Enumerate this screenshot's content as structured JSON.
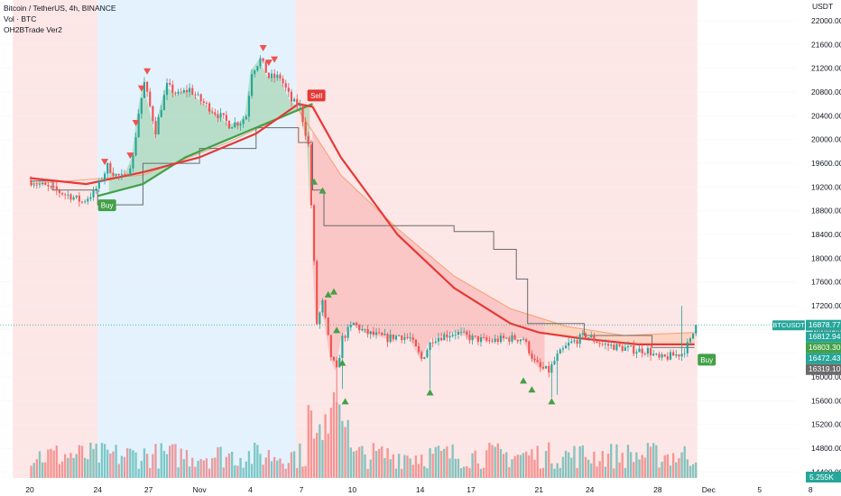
{
  "legend": {
    "symbol": "Bitcoin / TetherUS, 4h, BINANCE",
    "volume": "Vol · BTC",
    "indicator": "OH2BTrade Ver2"
  },
  "price_axis": {
    "currency": "USDT"
  },
  "colors": {
    "bull": "#26a69a",
    "bear": "#ef5350",
    "zone_red": "#fde6e6",
    "zone_blue": "#e3f2fd",
    "ema_red": "#e53935",
    "ema_green": "#43a047",
    "stop_line": "#6b6b6b"
  },
  "signals": {
    "buy_label": "Buy",
    "sell_label": "Sell"
  },
  "chart_data": {
    "type": "candlestick",
    "interval": "4h",
    "ylim": [
      14300,
      22350
    ],
    "y_ticks": [
      14400,
      14800,
      15200,
      15600,
      16000,
      16400,
      16800,
      17200,
      17600,
      18000,
      18400,
      18800,
      19200,
      19600,
      20000,
      20400,
      20800,
      21200,
      21600,
      22000
    ],
    "x_ticks": [
      "20",
      "24",
      "27",
      "Nov",
      "4",
      "7",
      "10",
      "14",
      "17",
      "21",
      "24",
      "28",
      "Dec",
      "5",
      "8"
    ],
    "x_tick_bars": [
      0,
      24,
      42,
      60,
      78,
      96,
      114,
      138,
      156,
      180,
      198,
      222,
      240,
      258,
      276
    ],
    "bar_count": 236,
    "last_bar": 235,
    "total_slots": 282,
    "background_zones": [
      {
        "from_bar": -6,
        "to_bar": 24,
        "color": "red"
      },
      {
        "from_bar": 24,
        "to_bar": 94,
        "color": "blue"
      },
      {
        "from_bar": 94,
        "to_bar": 236,
        "color": "red"
      }
    ],
    "price_path": [
      [
        0,
        19300
      ],
      [
        8,
        19150
      ],
      [
        14,
        19050
      ],
      [
        18,
        18950
      ],
      [
        22,
        19100
      ],
      [
        24,
        19250
      ],
      [
        27,
        19550
      ],
      [
        30,
        19400
      ],
      [
        33,
        19350
      ],
      [
        36,
        19700
      ],
      [
        38,
        20450
      ],
      [
        40,
        20950
      ],
      [
        42,
        20550
      ],
      [
        44,
        20150
      ],
      [
        46,
        20550
      ],
      [
        48,
        20900
      ],
      [
        52,
        20750
      ],
      [
        56,
        20850
      ],
      [
        60,
        20650
      ],
      [
        64,
        20500
      ],
      [
        68,
        20350
      ],
      [
        70,
        20250
      ],
      [
        74,
        20300
      ],
      [
        76,
        20400
      ],
      [
        78,
        21150
      ],
      [
        81,
        21350
      ],
      [
        84,
        21050
      ],
      [
        88,
        21050
      ],
      [
        92,
        20650
      ],
      [
        95,
        20550
      ],
      [
        98,
        19900
      ],
      [
        101,
        16900
      ],
      [
        103,
        17250
      ],
      [
        106,
        16350
      ],
      [
        108,
        16100
      ],
      [
        110,
        16650
      ],
      [
        114,
        16900
      ],
      [
        118,
        16750
      ],
      [
        122,
        16700
      ],
      [
        126,
        16650
      ],
      [
        130,
        16700
      ],
      [
        134,
        16650
      ],
      [
        138,
        16300
      ],
      [
        142,
        16650
      ],
      [
        146,
        16700
      ],
      [
        150,
        16750
      ],
      [
        156,
        16650
      ],
      [
        162,
        16600
      ],
      [
        168,
        16650
      ],
      [
        174,
        16650
      ],
      [
        178,
        16250
      ],
      [
        180,
        16150
      ],
      [
        183,
        16100
      ],
      [
        186,
        16350
      ],
      [
        190,
        16550
      ],
      [
        196,
        16700
      ],
      [
        202,
        16550
      ],
      [
        208,
        16500
      ],
      [
        214,
        16450
      ],
      [
        218,
        16450
      ],
      [
        222,
        16300
      ],
      [
        226,
        16350
      ],
      [
        230,
        16400
      ],
      [
        233,
        16600
      ],
      [
        235,
        16875
      ]
    ],
    "last_price": 16878.77,
    "price_labels": [
      {
        "label": "BTCUSDT",
        "value": "16878.77",
        "color": "#26a69a"
      },
      {
        "value": "16812.94",
        "color": "#26a69a"
      },
      {
        "value": "16803.30",
        "color": "#43a047"
      },
      {
        "value": "16472.43",
        "color": "#26a69a"
      },
      {
        "value": "16319.10",
        "color": "#6b6b6b"
      }
    ],
    "volume_label": "5.255K",
    "ema_red": [
      [
        0,
        19350
      ],
      [
        20,
        19250
      ],
      [
        40,
        19450
      ],
      [
        60,
        19700
      ],
      [
        80,
        20100
      ],
      [
        95,
        20600
      ],
      [
        100,
        20550
      ],
      [
        110,
        19700
      ],
      [
        130,
        18400
      ],
      [
        150,
        17500
      ],
      [
        170,
        16900
      ],
      [
        180,
        16750
      ],
      [
        195,
        16650
      ],
      [
        215,
        16550
      ],
      [
        235,
        16550
      ]
    ],
    "ema_green": [
      [
        24,
        19050
      ],
      [
        40,
        19250
      ],
      [
        55,
        19700
      ],
      [
        70,
        20000
      ],
      [
        85,
        20300
      ],
      [
        95,
        20500
      ],
      [
        100,
        20600
      ]
    ],
    "baseline_orange": [
      [
        0,
        19250
      ],
      [
        40,
        19400
      ],
      [
        70,
        19950
      ],
      [
        95,
        20500
      ],
      [
        110,
        19400
      ],
      [
        130,
        18500
      ],
      [
        150,
        17700
      ],
      [
        170,
        17150
      ],
      [
        190,
        16850
      ],
      [
        210,
        16700
      ],
      [
        235,
        16750
      ]
    ],
    "stop_line": [
      [
        0,
        19300
      ],
      [
        8,
        19300
      ],
      [
        8,
        19150
      ],
      [
        24,
        19150
      ],
      [
        24,
        18900
      ],
      [
        40,
        18900
      ],
      [
        40,
        19600
      ],
      [
        60,
        19600
      ],
      [
        60,
        19850
      ],
      [
        80,
        19850
      ],
      [
        80,
        20200
      ],
      [
        95,
        20200
      ],
      [
        95,
        19950
      ],
      [
        100,
        19950
      ],
      [
        100,
        19150
      ],
      [
        104,
        19150
      ],
      [
        104,
        18550
      ],
      [
        150,
        18550
      ],
      [
        150,
        18450
      ],
      [
        164,
        18450
      ],
      [
        164,
        18150
      ],
      [
        172,
        18150
      ],
      [
        172,
        17650
      ],
      [
        176,
        17650
      ],
      [
        176,
        16900
      ],
      [
        196,
        16900
      ],
      [
        196,
        16700
      ],
      [
        220,
        16700
      ],
      [
        220,
        16500
      ],
      [
        235,
        16500
      ]
    ],
    "sell_markers_bars": [
      26,
      35,
      37,
      39,
      41,
      82,
      84,
      86
    ],
    "buy_markers": [
      [
        100,
        19300
      ],
      [
        103,
        19150
      ],
      [
        105,
        17400
      ],
      [
        107,
        17450
      ],
      [
        108,
        16800
      ],
      [
        110,
        16250
      ],
      [
        111,
        15600
      ],
      [
        141,
        15750
      ],
      [
        174,
        15950
      ],
      [
        177,
        15800
      ],
      [
        184,
        15600
      ]
    ],
    "signal_tags": [
      {
        "bar": 27,
        "price": 18900,
        "kind": "buy"
      },
      {
        "bar": 101,
        "price": 20750,
        "kind": "sell"
      },
      {
        "bar": 239,
        "price": 16300,
        "kind": "buy"
      }
    ]
  }
}
